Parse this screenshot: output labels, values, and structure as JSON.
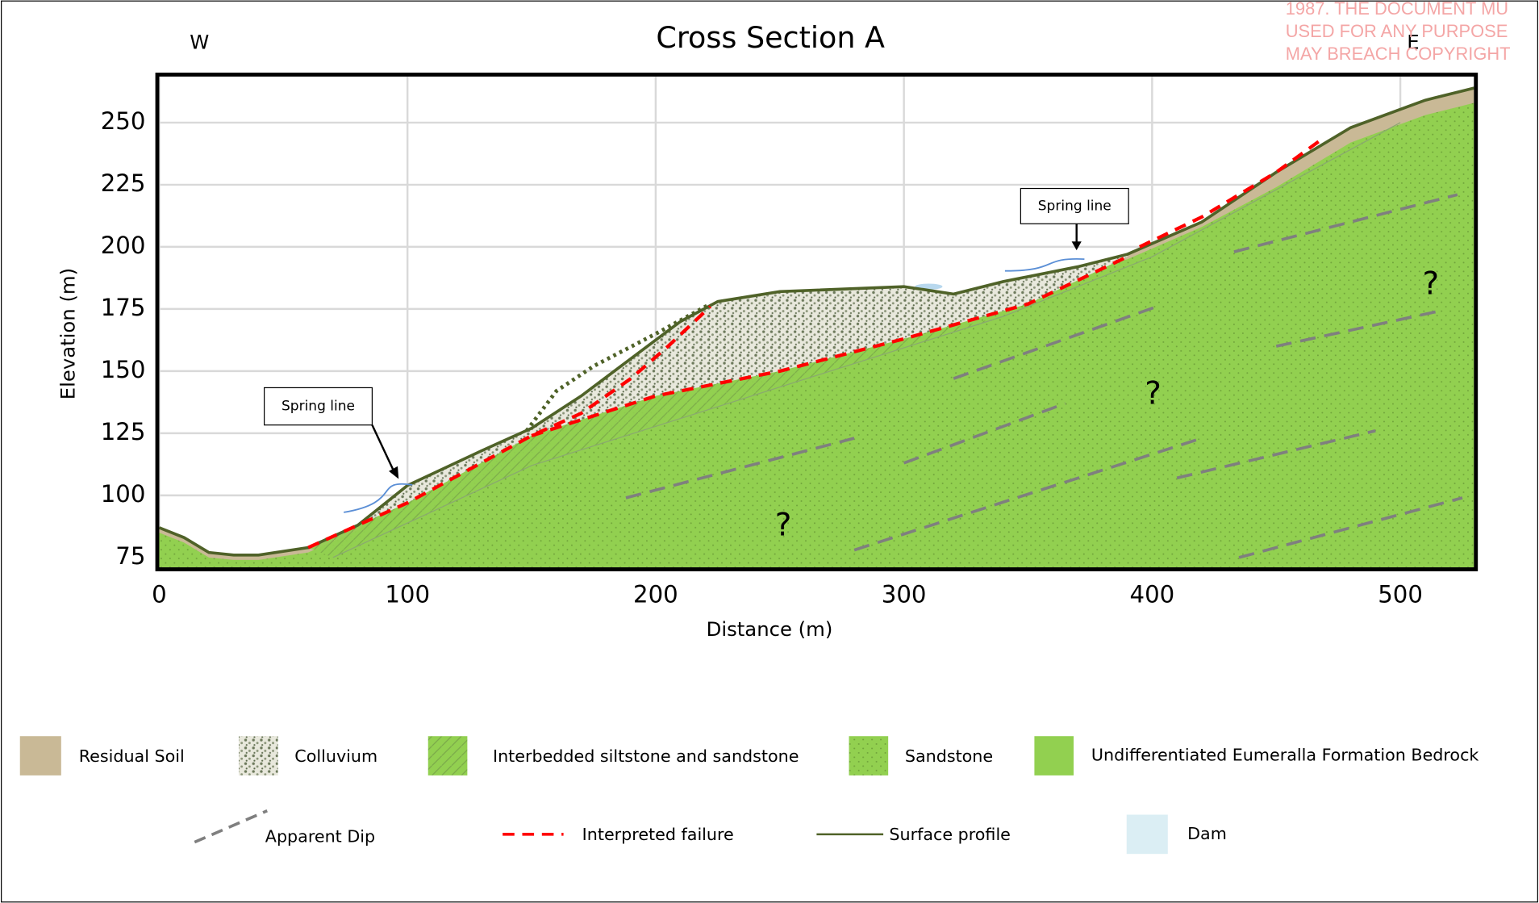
{
  "title": "Cross Section A",
  "west": "W",
  "east": "E",
  "x_axis_label": "Distance (m)",
  "y_axis_label": "Elevation (m)",
  "x_ticks": [
    0,
    100,
    200,
    300,
    400,
    500
  ],
  "y_ticks": [
    75,
    100,
    125,
    150,
    175,
    200,
    225,
    250
  ],
  "annotations": [
    "Spring line",
    "Spring line"
  ],
  "question_marks": [
    "?",
    "?",
    "?",
    "?"
  ],
  "watermark": [
    "1987. THE DOCUMENT MU",
    "USED FOR ANY PURPOSE",
    "MAY BREACH COPYRIGHT"
  ],
  "legend": [
    {
      "label": "Residual Soil"
    },
    {
      "label": "Colluvium"
    },
    {
      "label": "Interbedded siltstone and sandstone"
    },
    {
      "label": "Sandstone"
    },
    {
      "label": "Undifferentiated Eumeralla Formation Bedrock"
    },
    {
      "label": "Apparent Dip"
    },
    {
      "label": "Interpreted   failure"
    },
    {
      "label": "Surface profile"
    },
    {
      "label": "Dam"
    }
  ]
}
